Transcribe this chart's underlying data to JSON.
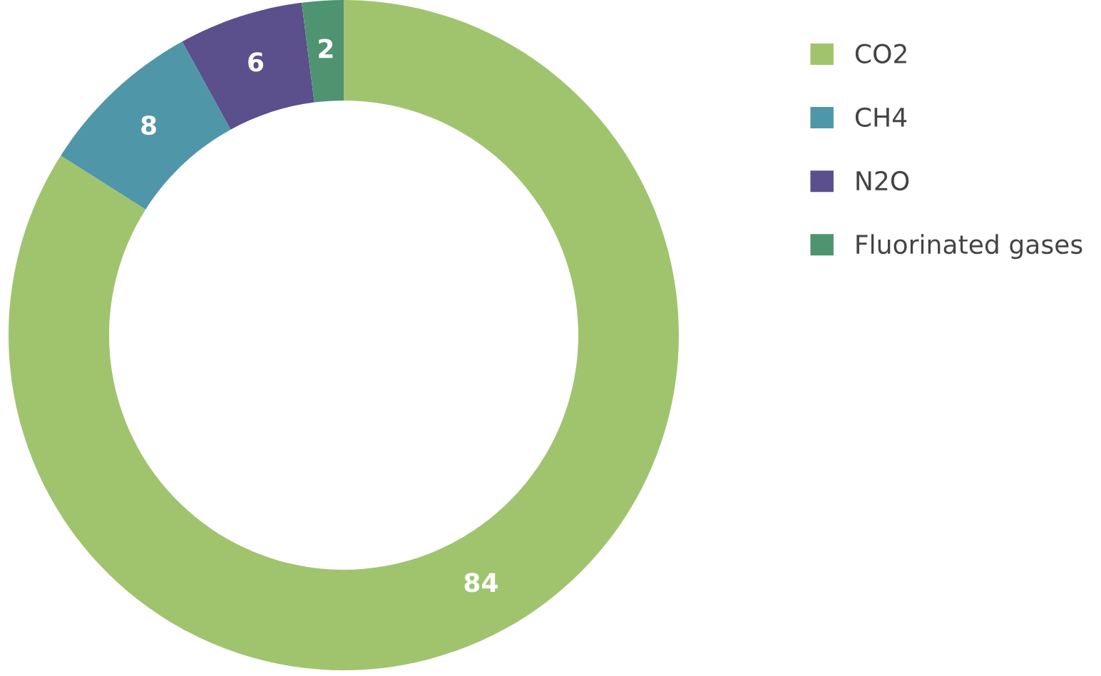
{
  "chart_data": {
    "type": "donut",
    "categories": [
      "CO2",
      "CH4",
      "N2O",
      "Fluorinated gases"
    ],
    "values": [
      84,
      8,
      6,
      2
    ],
    "colors": [
      "#a0c46e",
      "#4f97a8",
      "#5b4f8c",
      "#4e9470"
    ],
    "data_labels": true,
    "legend": "right"
  }
}
